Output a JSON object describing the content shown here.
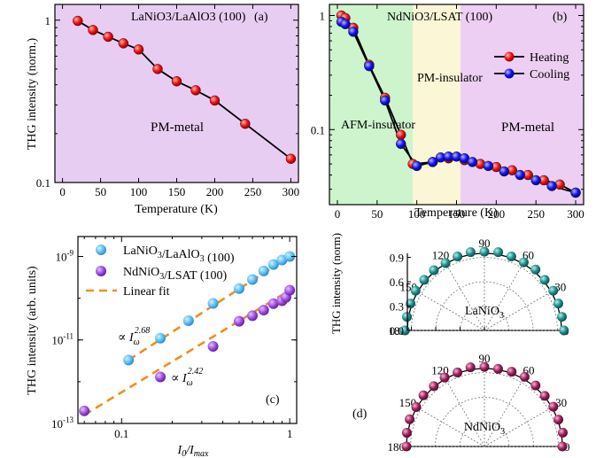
{
  "chart_data": [
    {
      "panel": "(a)",
      "type": "line",
      "title": "LaNiO3/LaAlO3 (100)",
      "xlabel": "Temperature (K)",
      "ylabel": "THG intensity (norm.)",
      "xlim": [
        -10,
        310
      ],
      "ylim": [
        0.1,
        1.25
      ],
      "yscale": "log",
      "xticks": [
        "0",
        "50",
        "100",
        "150",
        "200",
        "250",
        "300"
      ],
      "yticks": [
        "0.1",
        "1"
      ],
      "background": "#e8cdf2",
      "region_label": "PM-metal",
      "series": [
        {
          "color": "#ee1111",
          "x": [
            20,
            40,
            60,
            80,
            100,
            125,
            150,
            175,
            200,
            240,
            300
          ],
          "y": [
            0.99,
            0.87,
            0.79,
            0.72,
            0.66,
            0.5,
            0.42,
            0.37,
            0.32,
            0.23,
            0.14
          ]
        }
      ]
    },
    {
      "panel": "(b)",
      "type": "line",
      "title": "NdNiO3/LSAT (100)",
      "xlabel": "Temperature (K)",
      "xlim": [
        -10,
        310
      ],
      "ylim": [
        0.022,
        1.25
      ],
      "yscale": "log",
      "xticks": [
        "0",
        "50",
        "100",
        "150",
        "200",
        "250",
        "300"
      ],
      "yticks": [
        "0.1",
        "1"
      ],
      "regions": [
        {
          "label": "AFM-insulator",
          "x_from": -10,
          "x_to": 95,
          "color": "#cdf4cd"
        },
        {
          "label": "PM-insulator",
          "x_from": 95,
          "x_to": 155,
          "color": "#fbf6d6"
        },
        {
          "label": "PM-metal",
          "x_from": 155,
          "x_to": 310,
          "color": "#eccff3"
        }
      ],
      "legend_position": "top-right",
      "series": [
        {
          "name": "Heating",
          "color": "#ee1111",
          "x": [
            5,
            10,
            20,
            40,
            60,
            80,
            95,
            120,
            140,
            160,
            180,
            200,
            220,
            240,
            260,
            280,
            300
          ],
          "y": [
            1.0,
            0.95,
            0.78,
            0.37,
            0.19,
            0.09,
            0.05,
            0.052,
            0.056,
            0.054,
            0.05,
            0.047,
            0.044,
            0.04,
            0.036,
            0.033,
            0.028
          ]
        },
        {
          "name": "Cooling",
          "color": "#1111ee",
          "x": [
            5,
            10,
            20,
            40,
            60,
            80,
            100,
            120,
            130,
            140,
            150,
            160,
            170,
            190,
            210,
            230,
            250,
            270,
            300
          ],
          "y": [
            0.88,
            0.84,
            0.72,
            0.36,
            0.18,
            0.075,
            0.048,
            0.052,
            0.057,
            0.058,
            0.058,
            0.056,
            0.052,
            0.048,
            0.043,
            0.04,
            0.036,
            0.032,
            0.028
          ]
        }
      ]
    },
    {
      "panel": "(c)",
      "type": "scatter",
      "xlabel": "I0/Imax",
      "ylabel": "THG intensity (arb. units)",
      "xscale": "log",
      "yscale": "log",
      "xlim": [
        0.055,
        1.1
      ],
      "ylim": [
        1e-13,
        3e-09
      ],
      "xticks": [
        "0.1",
        "1"
      ],
      "yticks": [
        "10-13",
        "10-11",
        "10-9"
      ],
      "legend_position": "top-left",
      "series": [
        {
          "name": "LaNiO3/LaAlO3 (100)",
          "color": "#55bbee",
          "x": [
            0.11,
            0.17,
            0.25,
            0.35,
            0.5,
            0.6,
            0.7,
            0.8,
            0.9,
            1.0
          ],
          "y": [
            3.3e-12,
            1.1e-11,
            2.9e-11,
            7.5e-11,
            1.7e-10,
            2.8e-10,
            4.5e-10,
            6.4e-10,
            8.2e-10,
            1e-09
          ]
        },
        {
          "name": "NdNiO3/LSAT (100)",
          "color": "#9944dd",
          "x": [
            0.06,
            0.17,
            0.35,
            0.5,
            0.6,
            0.7,
            0.8,
            0.9,
            0.95,
            1.0
          ],
          "y": [
            2e-13,
            1.3e-12,
            7e-12,
            2.8e-11,
            3.8e-11,
            5.2e-11,
            7.4e-11,
            8.7e-11,
            1.05e-10,
            1.55e-10
          ]
        },
        {
          "name": "Linear fit",
          "color": "#f08c22",
          "x": [
            0.11,
            1.0
          ],
          "y": [
            3.3e-12,
            1e-09
          ]
        },
        {
          "color": "#f08c22",
          "x": [
            0.06,
            1.0
          ],
          "y": [
            1.6e-13,
            1.55e-10
          ]
        }
      ],
      "annotations": [
        {
          "base": "∝ I",
          "sub": "ω",
          "sup": "2.68"
        },
        {
          "base": "∝ I",
          "sub": "ω",
          "sup": "2.42"
        }
      ],
      "panel_label": "(c)"
    },
    {
      "panel": "(d)",
      "type": "scatter",
      "ylabel": "THG intensity (norm)",
      "radial_ticks": [
        "0.0",
        "0.3",
        "0.6",
        "0.9"
      ],
      "angle_ticks": [
        "0",
        "30",
        "60",
        "90",
        "120",
        "150",
        "180"
      ],
      "plots": [
        {
          "label": "LaNiO3",
          "color": "#1d8c88",
          "angles": [
            0,
            10,
            20,
            30,
            40,
            50,
            60,
            70,
            80,
            90,
            100,
            110,
            120,
            130,
            140,
            150,
            160,
            170,
            180
          ],
          "values": [
            0.98,
            0.97,
            0.97,
            0.98,
            0.97,
            0.98,
            0.97,
            0.97,
            0.98,
            0.97,
            0.98,
            0.97,
            0.96,
            0.97,
            0.97,
            0.98,
            0.97,
            0.97,
            0.98
          ]
        },
        {
          "label": "NdNiO3",
          "color": "#9a1f5a",
          "angles": [
            0,
            10,
            20,
            30,
            40,
            50,
            60,
            70,
            80,
            90,
            100,
            110,
            120,
            130,
            140,
            150,
            160,
            170,
            180
          ],
          "values": [
            0.95,
            0.97,
            0.96,
            0.97,
            0.96,
            0.97,
            0.98,
            0.97,
            0.96,
            0.97,
            0.98,
            0.96,
            0.97,
            0.96,
            0.97,
            0.96,
            0.97,
            0.96,
            0.95
          ]
        }
      ],
      "panel_label": "(d)"
    }
  ]
}
